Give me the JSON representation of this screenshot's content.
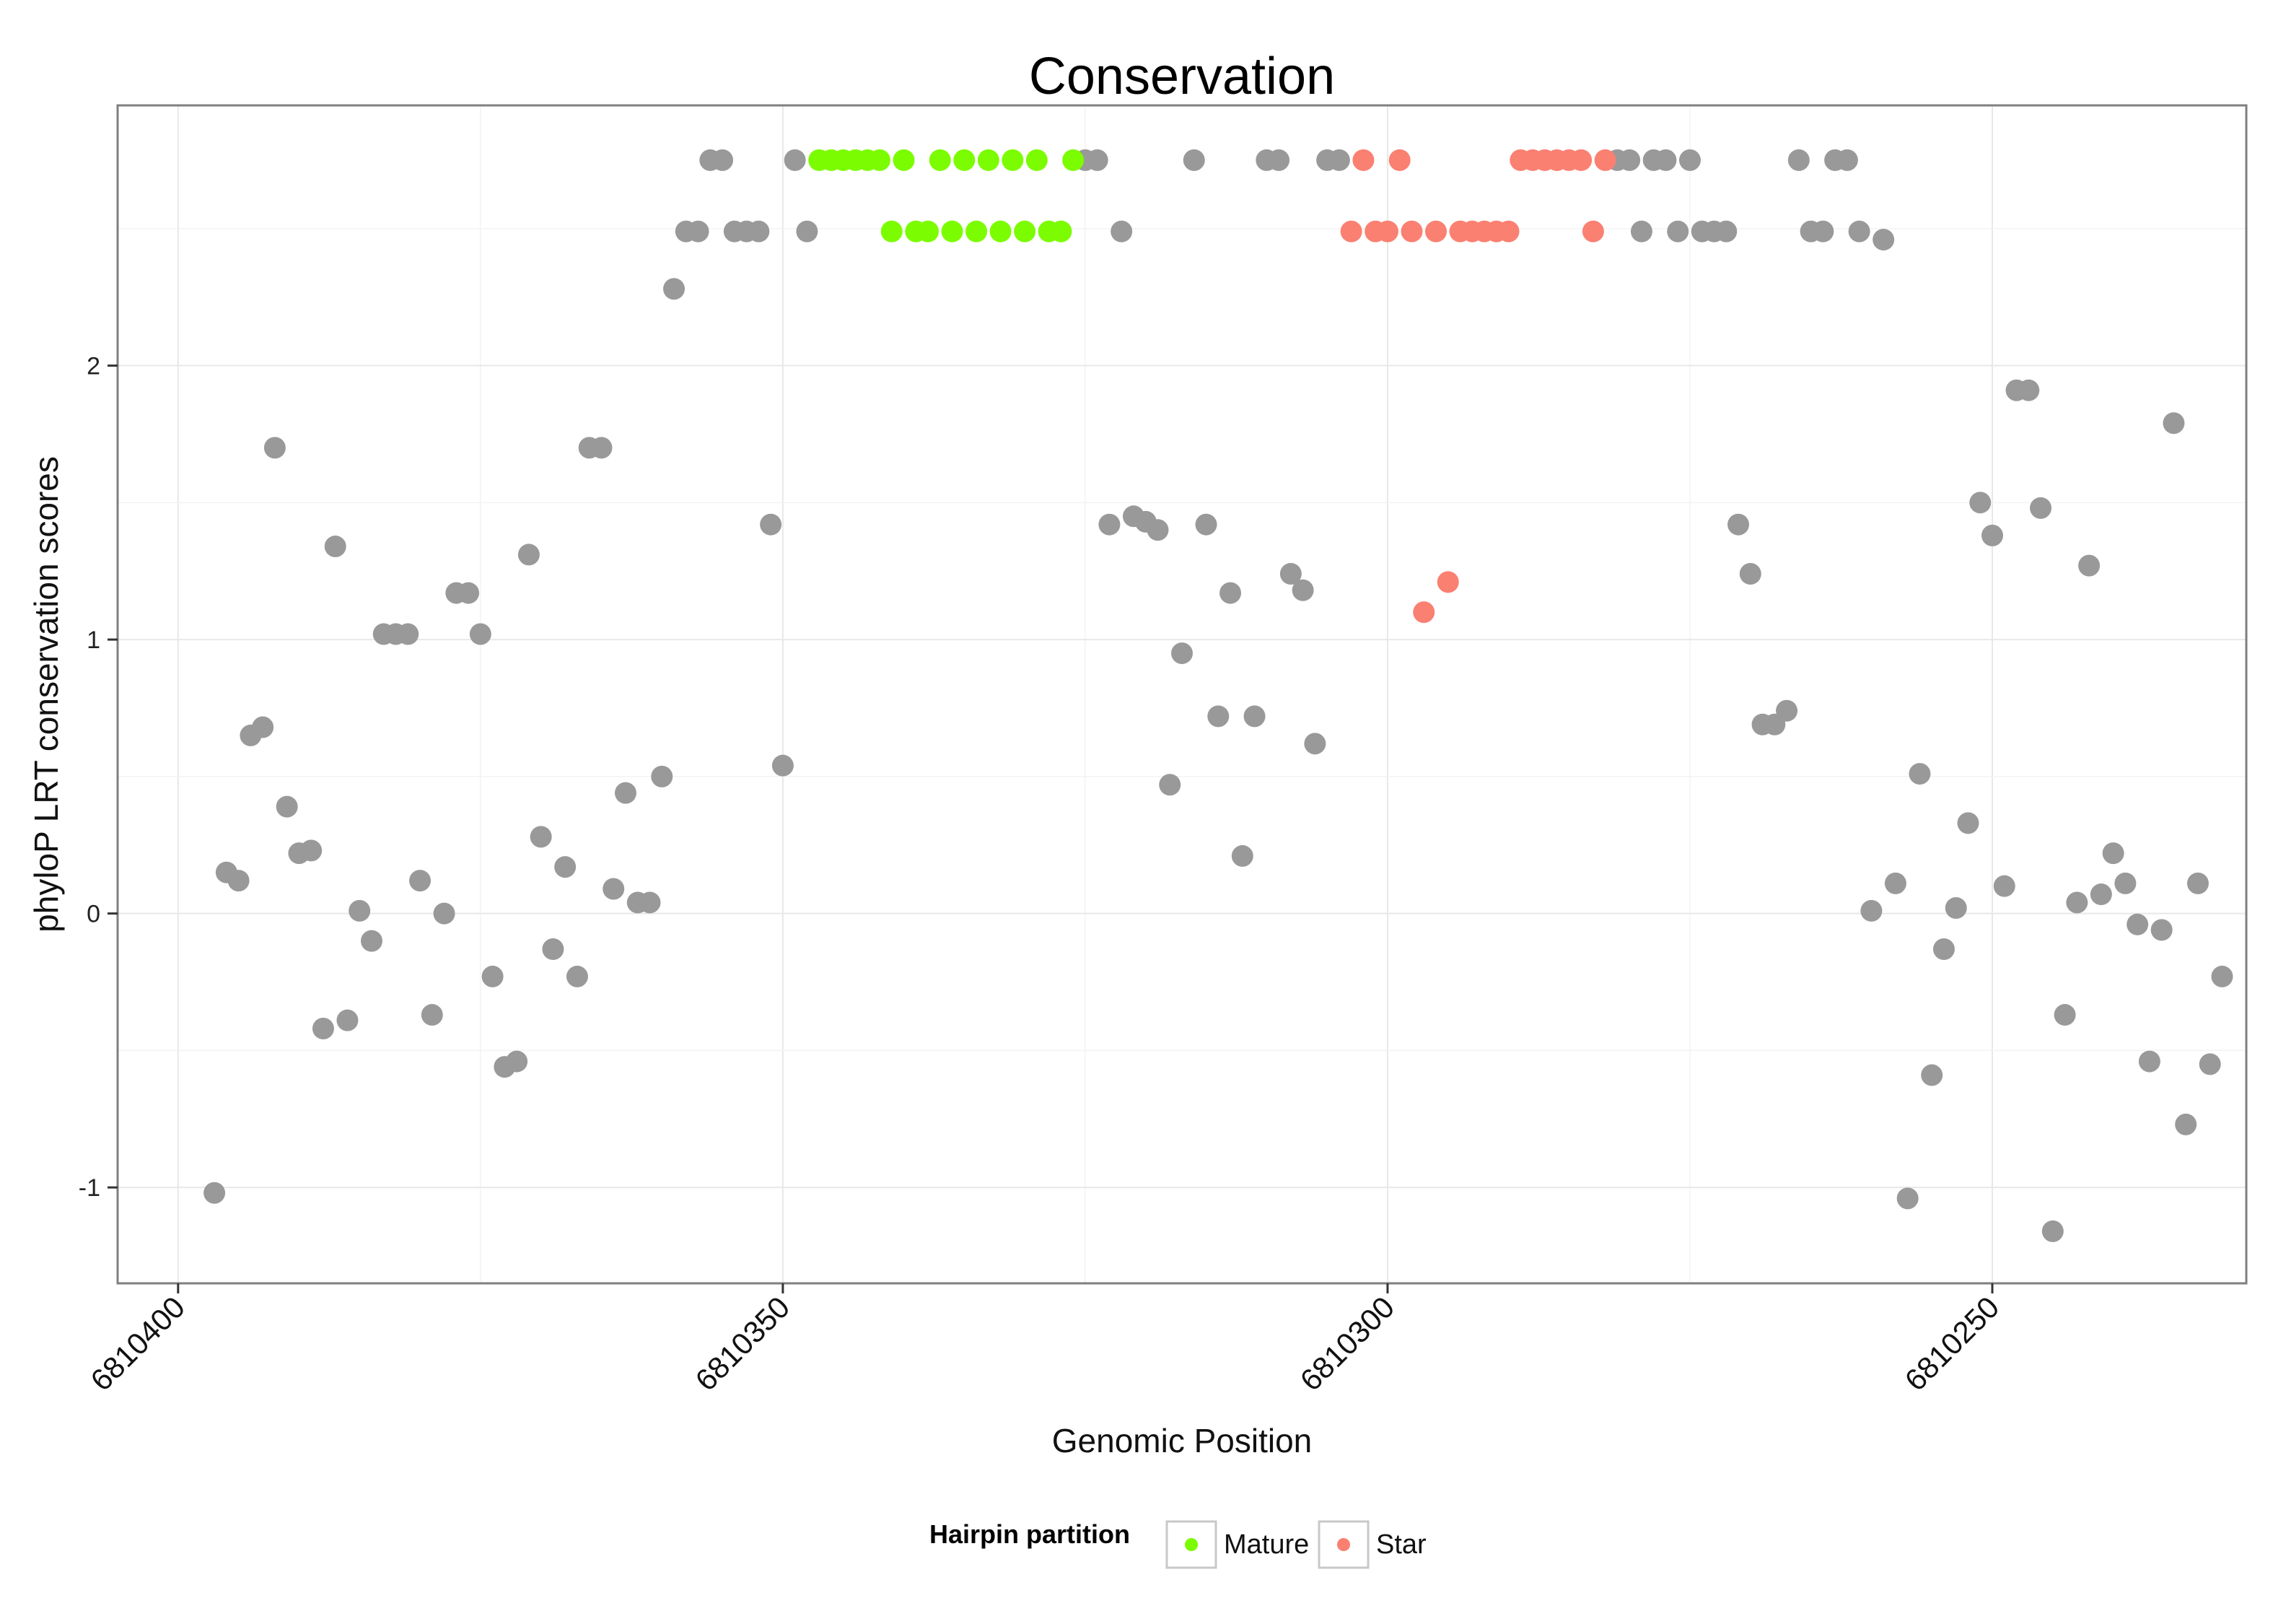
{
  "chart_data": {
    "type": "scatter",
    "title": "Conservation",
    "xlabel": "Genomic Position",
    "ylabel": "phyloP LRT conservation scores",
    "x_reversed": true,
    "xlim": [
      6810405,
      6810229
    ],
    "ylim": [
      -1.35,
      2.95
    ],
    "x_ticks": [
      6810400,
      6810350,
      6810300,
      6810250
    ],
    "x_tick_labels": [
      "6810400",
      "6810350",
      "6810300",
      "6810250"
    ],
    "y_ticks": [
      -1,
      0,
      1,
      2
    ],
    "y_tick_labels": [
      "-1",
      "0",
      "1",
      "2"
    ],
    "grid": true,
    "legend": {
      "title": "Hairpin partition",
      "position": "bottom",
      "entries": [
        {
          "label": "Mature",
          "color": "#7CFC00"
        },
        {
          "label": "Star",
          "color": "#FA8072"
        }
      ]
    },
    "colors": {
      "Other": "#999999",
      "Mature": "#7CFC00",
      "Star": "#FA8072"
    },
    "series": [
      {
        "name": "Other",
        "points": [
          [
            6810397,
            -1.02
          ],
          [
            6810396,
            0.15
          ],
          [
            6810395,
            0.12
          ],
          [
            6810394,
            0.65
          ],
          [
            6810393,
            0.68
          ],
          [
            6810392,
            1.7
          ],
          [
            6810391,
            0.39
          ],
          [
            6810390,
            0.22
          ],
          [
            6810389,
            0.23
          ],
          [
            6810388,
            -0.42
          ],
          [
            6810387,
            1.34
          ],
          [
            6810386,
            -0.39
          ],
          [
            6810385,
            0.01
          ],
          [
            6810384,
            -0.1
          ],
          [
            6810383,
            1.02
          ],
          [
            6810382,
            1.02
          ],
          [
            6810381,
            1.02
          ],
          [
            6810380,
            0.12
          ],
          [
            6810379,
            -0.37
          ],
          [
            6810378,
            0.0
          ],
          [
            6810377,
            1.17
          ],
          [
            6810376,
            1.17
          ],
          [
            6810375,
            1.02
          ],
          [
            6810374,
            -0.23
          ],
          [
            6810373,
            -0.56
          ],
          [
            6810372,
            -0.54
          ],
          [
            6810371,
            1.31
          ],
          [
            6810370,
            0.28
          ],
          [
            6810369,
            -0.13
          ],
          [
            6810368,
            0.17
          ],
          [
            6810367,
            -0.23
          ],
          [
            6810366,
            1.7
          ],
          [
            6810365,
            1.7
          ],
          [
            6810364,
            0.09
          ],
          [
            6810363,
            0.44
          ],
          [
            6810362,
            0.04
          ],
          [
            6810361,
            0.04
          ],
          [
            6810360,
            0.5
          ],
          [
            6810359,
            2.28
          ],
          [
            6810358,
            2.49
          ],
          [
            6810357,
            2.49
          ],
          [
            6810356,
            2.75
          ],
          [
            6810355,
            2.75
          ],
          [
            6810354,
            2.49
          ],
          [
            6810353,
            2.49
          ],
          [
            6810352,
            2.49
          ],
          [
            6810351,
            1.42
          ],
          [
            6810350,
            0.54
          ],
          [
            6810349,
            2.75
          ],
          [
            6810348,
            2.49
          ],
          [
            6810325,
            2.75
          ],
          [
            6810324,
            2.75
          ],
          [
            6810323,
            1.42
          ],
          [
            6810322,
            2.49
          ],
          [
            6810321,
            1.45
          ],
          [
            6810320,
            1.43
          ],
          [
            6810319,
            1.4
          ],
          [
            6810318,
            0.47
          ],
          [
            6810317,
            0.95
          ],
          [
            6810316,
            2.75
          ],
          [
            6810315,
            1.42
          ],
          [
            6810314,
            0.72
          ],
          [
            6810313,
            1.17
          ],
          [
            6810312,
            0.21
          ],
          [
            6810311,
            0.72
          ],
          [
            6810310,
            2.75
          ],
          [
            6810309,
            2.75
          ],
          [
            6810308,
            1.24
          ],
          [
            6810307,
            1.18
          ],
          [
            6810306,
            0.62
          ],
          [
            6810305,
            2.75
          ],
          [
            6810304,
            2.75
          ],
          [
            6810281,
            2.75
          ],
          [
            6810280,
            2.75
          ],
          [
            6810279,
            2.49
          ],
          [
            6810278,
            2.75
          ],
          [
            6810277,
            2.75
          ],
          [
            6810276,
            2.49
          ],
          [
            6810275,
            2.75
          ],
          [
            6810274,
            2.49
          ],
          [
            6810273,
            2.49
          ],
          [
            6810272,
            2.49
          ],
          [
            6810271,
            1.42
          ],
          [
            6810270,
            1.24
          ],
          [
            6810269,
            0.69
          ],
          [
            6810268,
            0.69
          ],
          [
            6810267,
            0.74
          ],
          [
            6810266,
            2.75
          ],
          [
            6810265,
            2.49
          ],
          [
            6810264,
            2.49
          ],
          [
            6810263,
            2.75
          ],
          [
            6810262,
            2.75
          ],
          [
            6810261,
            2.49
          ],
          [
            6810260,
            0.01
          ],
          [
            6810259,
            2.46
          ],
          [
            6810258,
            0.11
          ],
          [
            6810257,
            -1.04
          ],
          [
            6810256,
            0.51
          ],
          [
            6810255,
            -0.59
          ],
          [
            6810254,
            -0.13
          ],
          [
            6810253,
            0.02
          ],
          [
            6810252,
            0.33
          ],
          [
            6810251,
            1.5
          ],
          [
            6810250,
            1.38
          ],
          [
            6810249,
            0.1
          ],
          [
            6810248,
            1.91
          ],
          [
            6810247,
            1.91
          ],
          [
            6810246,
            1.48
          ],
          [
            6810245,
            -1.16
          ],
          [
            6810244,
            -0.37
          ],
          [
            6810243,
            0.04
          ],
          [
            6810242,
            1.27
          ],
          [
            6810241,
            0.07
          ],
          [
            6810240,
            0.22
          ],
          [
            6810239,
            0.11
          ],
          [
            6810238,
            -0.04
          ],
          [
            6810237,
            -0.54
          ],
          [
            6810236,
            -0.06
          ],
          [
            6810235,
            1.79
          ],
          [
            6810234,
            -0.77
          ],
          [
            6810233,
            0.11
          ],
          [
            6810232,
            -0.55
          ],
          [
            6810231,
            -0.23
          ]
        ]
      },
      {
        "name": "Mature",
        "points": [
          [
            6810347,
            2.75
          ],
          [
            6810346,
            2.75
          ],
          [
            6810345,
            2.75
          ],
          [
            6810344,
            2.75
          ],
          [
            6810343,
            2.75
          ],
          [
            6810342,
            2.75
          ],
          [
            6810341,
            2.49
          ],
          [
            6810340,
            2.75
          ],
          [
            6810339,
            2.49
          ],
          [
            6810338,
            2.49
          ],
          [
            6810337,
            2.75
          ],
          [
            6810336,
            2.49
          ],
          [
            6810335,
            2.75
          ],
          [
            6810334,
            2.49
          ],
          [
            6810333,
            2.75
          ],
          [
            6810332,
            2.49
          ],
          [
            6810331,
            2.75
          ],
          [
            6810330,
            2.49
          ],
          [
            6810329,
            2.75
          ],
          [
            6810328,
            2.49
          ],
          [
            6810327,
            2.49
          ],
          [
            6810326,
            2.75
          ]
        ]
      },
      {
        "name": "Star",
        "points": [
          [
            6810303,
            2.49
          ],
          [
            6810302,
            2.75
          ],
          [
            6810301,
            2.49
          ],
          [
            6810300,
            2.49
          ],
          [
            6810299,
            2.75
          ],
          [
            6810298,
            2.49
          ],
          [
            6810297,
            1.1
          ],
          [
            6810296,
            2.49
          ],
          [
            6810295,
            1.21
          ],
          [
            6810294,
            2.49
          ],
          [
            6810293,
            2.49
          ],
          [
            6810292,
            2.49
          ],
          [
            6810291,
            2.49
          ],
          [
            6810290,
            2.49
          ],
          [
            6810289,
            2.75
          ],
          [
            6810288,
            2.75
          ],
          [
            6810287,
            2.75
          ],
          [
            6810286,
            2.75
          ],
          [
            6810285,
            2.75
          ],
          [
            6810284,
            2.75
          ],
          [
            6810283,
            2.49
          ],
          [
            6810282,
            2.75
          ]
        ]
      }
    ]
  }
}
